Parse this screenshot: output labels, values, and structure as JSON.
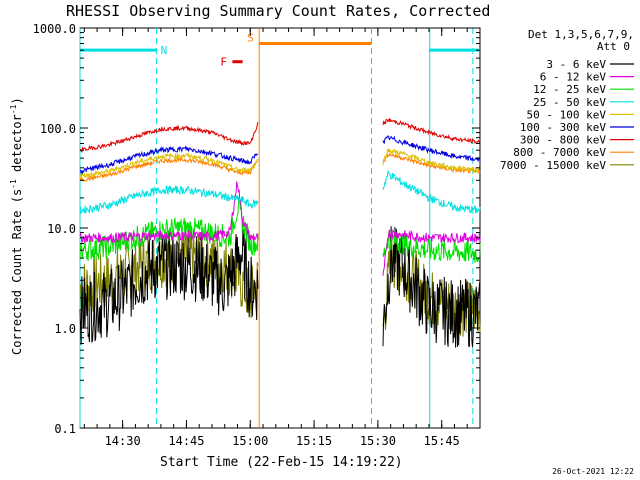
{
  "chart_data": {
    "type": "line",
    "title": "RHESSI Observing Summary Count Rates, Corrected",
    "xlabel": "Start Time (22-Feb-15 14:19:22)",
    "ylabel_main": "Corrected Count Rate (s",
    "ylabel_sup1": "-1",
    "ylabel_mid": " detector",
    "ylabel_sup2": "-1",
    "ylabel_end": ")",
    "y_scale": "log",
    "ylim": [
      0.1,
      1000
    ],
    "xlim_minutes": [
      14.333,
      15.9
    ],
    "x_ticks": [
      {
        "m": 14.5,
        "label": "14:30"
      },
      {
        "m": 14.75,
        "label": "14:45"
      },
      {
        "m": 15.0,
        "label": "15:00"
      },
      {
        "m": 15.25,
        "label": "15:15"
      },
      {
        "m": 15.5,
        "label": "15:30"
      },
      {
        "m": 15.75,
        "label": "15:45"
      }
    ],
    "y_ticks": [
      {
        "v": 0.1,
        "label": "0.1"
      },
      {
        "v": 1,
        "label": "1.0"
      },
      {
        "v": 10,
        "label": "10.0"
      },
      {
        "v": 100,
        "label": "100.0"
      },
      {
        "v": 1000,
        "label": "1000.0"
      }
    ],
    "legend_header": [
      "Det 1,3,5,6,7,9,",
      "Att 0"
    ],
    "legend_placement": "right",
    "timestamp": "26-Oct-2021 12:22",
    "segments": {
      "gap_start": 15.04,
      "gap_end": 15.52
    },
    "series": [
      {
        "name": "3 - 6 keV",
        "color": "#000000",
        "before": [
          [
            14.333,
            1.5
          ],
          [
            14.45,
            1.8
          ],
          [
            14.5,
            2.2
          ],
          [
            14.55,
            3
          ],
          [
            14.6,
            3.8
          ],
          [
            14.65,
            4.2
          ],
          [
            14.7,
            4.3
          ],
          [
            14.75,
            4.2
          ],
          [
            14.8,
            4
          ],
          [
            14.85,
            3.2
          ],
          [
            14.9,
            2.6
          ],
          [
            14.94,
            4
          ],
          [
            14.96,
            6
          ],
          [
            14.98,
            4
          ],
          [
            15.0,
            2.5
          ],
          [
            15.03,
            2.5
          ]
        ],
        "after": [
          [
            15.52,
            1
          ],
          [
            15.55,
            5
          ],
          [
            15.6,
            4
          ],
          [
            15.65,
            2.5
          ],
          [
            15.7,
            1.6
          ],
          [
            15.8,
            1.4
          ],
          [
            15.9,
            1.4
          ]
        ],
        "noise": 0.35
      },
      {
        "name": "6 - 12 keV",
        "color": "#e000e0",
        "before": [
          [
            14.333,
            8
          ],
          [
            14.45,
            8
          ],
          [
            14.55,
            8.2
          ],
          [
            14.65,
            8.4
          ],
          [
            14.75,
            8.4
          ],
          [
            14.85,
            8.2
          ],
          [
            14.92,
            9
          ],
          [
            14.95,
            30
          ],
          [
            14.97,
            12
          ],
          [
            15.0,
            8
          ],
          [
            15.03,
            8
          ]
        ],
        "after": [
          [
            15.52,
            3
          ],
          [
            15.54,
            9
          ],
          [
            15.6,
            8.5
          ],
          [
            15.7,
            8
          ],
          [
            15.8,
            8
          ],
          [
            15.9,
            8
          ]
        ],
        "noise": 0.05
      },
      {
        "name": "12 - 25 keV",
        "color": "#00e000",
        "before": [
          [
            14.333,
            6
          ],
          [
            14.45,
            6.5
          ],
          [
            14.55,
            8
          ],
          [
            14.65,
            9.5
          ],
          [
            14.75,
            10
          ],
          [
            14.85,
            9
          ],
          [
            14.92,
            8
          ],
          [
            14.95,
            16
          ],
          [
            14.98,
            10
          ],
          [
            15.0,
            7
          ],
          [
            15.03,
            7
          ]
        ],
        "after": [
          [
            15.52,
            5
          ],
          [
            15.54,
            8
          ],
          [
            15.6,
            7
          ],
          [
            15.7,
            6
          ],
          [
            15.8,
            5.8
          ],
          [
            15.9,
            5.6
          ]
        ],
        "noise": 0.12
      },
      {
        "name": "25 - 50 keV",
        "color": "#00e0e0",
        "before": [
          [
            14.333,
            15
          ],
          [
            14.45,
            17
          ],
          [
            14.55,
            21
          ],
          [
            14.65,
            24
          ],
          [
            14.75,
            24
          ],
          [
            14.85,
            22
          ],
          [
            14.92,
            20
          ],
          [
            14.97,
            19
          ],
          [
            15.0,
            17
          ],
          [
            15.03,
            18
          ]
        ],
        "after": [
          [
            15.52,
            25
          ],
          [
            15.54,
            35
          ],
          [
            15.6,
            28
          ],
          [
            15.7,
            20
          ],
          [
            15.8,
            16
          ],
          [
            15.9,
            15
          ]
        ],
        "noise": 0.04
      },
      {
        "name": "50 - 100 keV",
        "color": "#e0c000",
        "before": [
          [
            14.333,
            33
          ],
          [
            14.45,
            37
          ],
          [
            14.55,
            45
          ],
          [
            14.65,
            52
          ],
          [
            14.75,
            53
          ],
          [
            14.85,
            48
          ],
          [
            14.95,
            38
          ],
          [
            15.0,
            38
          ],
          [
            15.03,
            48
          ]
        ],
        "after": [
          [
            15.52,
            45
          ],
          [
            15.54,
            60
          ],
          [
            15.6,
            55
          ],
          [
            15.7,
            45
          ],
          [
            15.8,
            40
          ],
          [
            15.9,
            38
          ]
        ],
        "noise": 0.025
      },
      {
        "name": "100 - 300 keV",
        "color": "#0000e0",
        "before": [
          [
            14.333,
            37
          ],
          [
            14.45,
            43
          ],
          [
            14.55,
            52
          ],
          [
            14.65,
            60
          ],
          [
            14.75,
            62
          ],
          [
            14.85,
            56
          ],
          [
            14.95,
            48
          ],
          [
            15.0,
            45
          ],
          [
            15.03,
            58
          ]
        ],
        "after": [
          [
            15.52,
            72
          ],
          [
            15.54,
            80
          ],
          [
            15.6,
            72
          ],
          [
            15.7,
            60
          ],
          [
            15.8,
            52
          ],
          [
            15.9,
            48
          ]
        ],
        "noise": 0.025
      },
      {
        "name": "300 - 800 keV",
        "color": "#e00000",
        "before": [
          [
            14.333,
            60
          ],
          [
            14.45,
            68
          ],
          [
            14.55,
            82
          ],
          [
            14.65,
            98
          ],
          [
            14.75,
            100
          ],
          [
            14.85,
            90
          ],
          [
            14.95,
            72
          ],
          [
            15.0,
            70
          ],
          [
            15.03,
            110
          ]
        ],
        "after": [
          [
            15.52,
            110
          ],
          [
            15.54,
            120
          ],
          [
            15.6,
            110
          ],
          [
            15.7,
            90
          ],
          [
            15.8,
            78
          ],
          [
            15.9,
            72
          ]
        ],
        "noise": 0.02
      },
      {
        "name": "800 - 7000 keV",
        "color": "#ff8000",
        "before": [
          [
            14.333,
            30
          ],
          [
            14.45,
            34
          ],
          [
            14.55,
            41
          ],
          [
            14.65,
            47
          ],
          [
            14.75,
            48
          ],
          [
            14.85,
            44
          ],
          [
            14.95,
            36
          ],
          [
            15.0,
            36
          ],
          [
            15.03,
            50
          ]
        ],
        "after": [
          [
            15.52,
            45
          ],
          [
            15.54,
            55
          ],
          [
            15.6,
            50
          ],
          [
            15.7,
            42
          ],
          [
            15.8,
            38
          ],
          [
            15.9,
            36
          ]
        ],
        "noise": 0.02
      },
      {
        "name": "7000 - 15000 keV",
        "color": "#808000",
        "before": [
          [
            14.333,
            2.5
          ],
          [
            14.45,
            3
          ],
          [
            14.55,
            4
          ],
          [
            14.65,
            5
          ],
          [
            14.75,
            5.2
          ],
          [
            14.85,
            5
          ],
          [
            14.92,
            4
          ],
          [
            14.96,
            3
          ],
          [
            15.0,
            2
          ],
          [
            15.03,
            3
          ]
        ],
        "after": [
          [
            15.52,
            1
          ],
          [
            15.55,
            5
          ],
          [
            15.6,
            4
          ],
          [
            15.65,
            3
          ],
          [
            15.7,
            2
          ],
          [
            15.8,
            1.6
          ],
          [
            15.9,
            1.6
          ]
        ],
        "noise": 0.3
      }
    ],
    "annotations": [
      {
        "name": "night",
        "label": "N",
        "color": "#00e0e0",
        "bars": [
          [
            14.333,
            14.633
          ],
          [
            15.7,
            15.9
          ]
        ],
        "y": 600,
        "v_solid": [
          14.333,
          15.703
        ],
        "v_dashed": [
          14.633,
          15.872
        ]
      },
      {
        "name": "saa",
        "label": "S",
        "color": "#ff8000",
        "bars": [
          [
            15.035,
            15.475
          ]
        ],
        "y": 700,
        "v_solid": [
          15.035
        ],
        "v_dashed": [
          15.475
        ]
      },
      {
        "name": "flare",
        "label": "F",
        "color": "#e00000",
        "bars": [
          [
            14.93,
            14.97
          ]
        ],
        "y": 460
      }
    ]
  }
}
